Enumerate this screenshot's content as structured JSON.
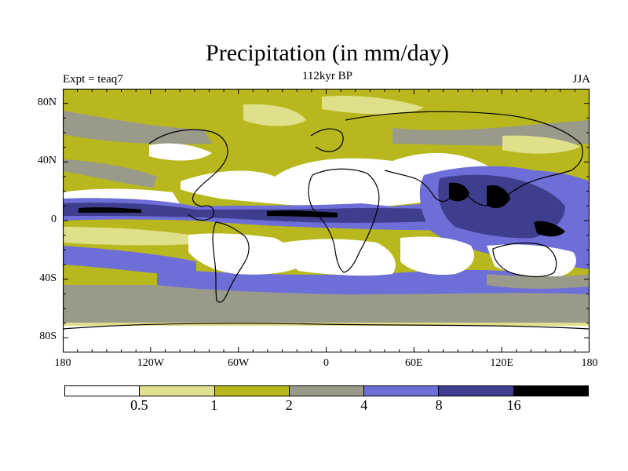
{
  "title": "Precipitation (in mm/day)",
  "left_label": "Expt = teaq7",
  "center_label": "112kyr BP",
  "right_label": "JJA",
  "lat_ticks": [
    "80N",
    "40N",
    "0",
    "40S",
    "80S"
  ],
  "lon_ticks": [
    "180",
    "120W",
    "60W",
    "0",
    "60E",
    "120E",
    "180"
  ],
  "colorbar": {
    "colors": [
      "#ffffff",
      "#e0e08a",
      "#b8b81e",
      "#9a9a8a",
      "#6e6ed8",
      "#3e3e8e",
      "#000000"
    ],
    "boundaries": [
      "0.5",
      "1",
      "2",
      "4",
      "8",
      "16"
    ]
  }
}
